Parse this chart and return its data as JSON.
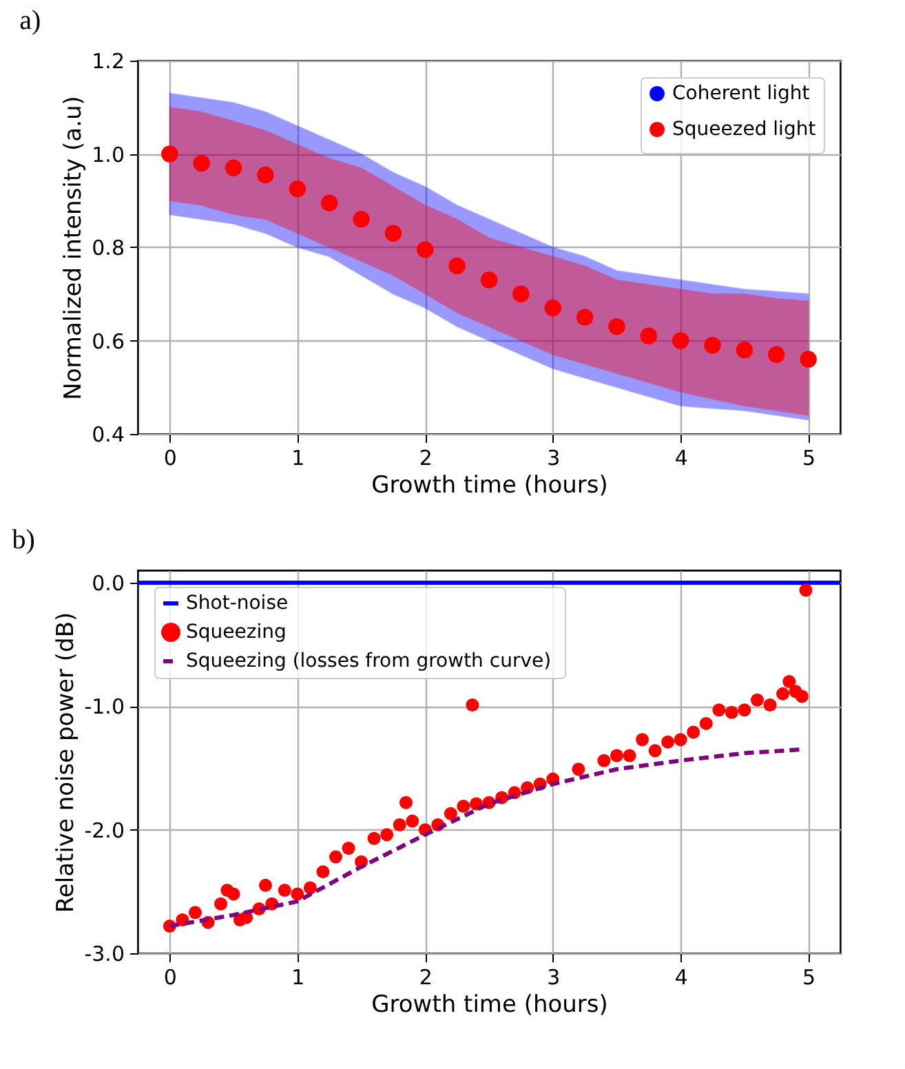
{
  "chart_data": [
    {
      "type": "scatter",
      "annotations": [
        "a)"
      ],
      "xlabel": "Growth time (hours)",
      "ylabel": "Normalized intensity (a.u)",
      "xlim": [
        -0.25,
        5.25
      ],
      "ylim": [
        0.4,
        1.2
      ],
      "xticks": [
        0,
        1,
        2,
        3,
        4,
        5
      ],
      "yticks": [
        {
          "value": 0.4,
          "label": "0.4"
        },
        {
          "value": 0.6,
          "label": "0.6"
        },
        {
          "value": 0.8,
          "label": "0.8"
        },
        {
          "value": 1.0,
          "label": "1.0"
        },
        {
          "value": 1.2,
          "label": "1.2"
        }
      ],
      "grid": true,
      "legend": "top right",
      "x": [
        0,
        0.25,
        0.5,
        0.75,
        1,
        1.25,
        1.5,
        1.75,
        2,
        2.25,
        2.5,
        2.75,
        3,
        3.25,
        3.5,
        3.75,
        4,
        4.25,
        4.5,
        4.75,
        5
      ],
      "series": [
        {
          "name": "Coherent light",
          "color": "#0000ff",
          "values": [
            null,
            null,
            null,
            null,
            null,
            null,
            null,
            null,
            null,
            null,
            null,
            null,
            null,
            null,
            null,
            null,
            null,
            null,
            null,
            null,
            null
          ],
          "lower": [
            0.87,
            0.86,
            0.85,
            0.83,
            0.8,
            0.78,
            0.74,
            0.7,
            0.67,
            0.63,
            0.6,
            0.57,
            0.54,
            0.52,
            0.5,
            0.48,
            0.46,
            0.455,
            0.45,
            0.44,
            0.43
          ],
          "upper": [
            1.13,
            1.12,
            1.11,
            1.09,
            1.06,
            1.03,
            1.0,
            0.96,
            0.93,
            0.89,
            0.86,
            0.83,
            0.8,
            0.78,
            0.75,
            0.74,
            0.73,
            0.72,
            0.71,
            0.705,
            0.7
          ]
        },
        {
          "name": "Squeezed light",
          "color": "#ff0000",
          "values": [
            1.0,
            0.98,
            0.97,
            0.955,
            0.925,
            0.895,
            0.86,
            0.83,
            0.795,
            0.76,
            0.73,
            0.7,
            0.67,
            0.65,
            0.63,
            0.61,
            0.6,
            0.59,
            0.58,
            0.57,
            0.56
          ],
          "lower": [
            0.9,
            0.89,
            0.87,
            0.86,
            0.83,
            0.8,
            0.77,
            0.74,
            0.7,
            0.66,
            0.63,
            0.6,
            0.57,
            0.55,
            0.53,
            0.51,
            0.49,
            0.475,
            0.46,
            0.45,
            0.44
          ],
          "upper": [
            1.1,
            1.09,
            1.07,
            1.05,
            1.02,
            0.99,
            0.97,
            0.93,
            0.89,
            0.86,
            0.82,
            0.8,
            0.78,
            0.76,
            0.73,
            0.72,
            0.71,
            0.7,
            0.7,
            0.69,
            0.685
          ]
        }
      ]
    },
    {
      "type": "scatter",
      "annotations": [
        "b)"
      ],
      "xlabel": "Growth time (hours)",
      "ylabel": "Relative noise power (dB)",
      "xlim": [
        -0.25,
        5.25
      ],
      "ylim": [
        -3.0,
        0.1
      ],
      "xticks": [
        0,
        1,
        2,
        3,
        4,
        5
      ],
      "yticks": [
        {
          "value": -3,
          "label": "-3.0"
        },
        {
          "value": -2,
          "label": "-2.0"
        },
        {
          "value": -1,
          "label": "-1.0"
        },
        {
          "value": 0,
          "label": "0.0"
        }
      ],
      "grid": true,
      "legend": "top left",
      "series": [
        {
          "name": "Shot-noise",
          "type": "line",
          "color": "#0000ff",
          "line_style": "solid",
          "x": [
            -0.25,
            5.25
          ],
          "values": [
            0,
            0
          ]
        },
        {
          "name": "Squeezing",
          "type": "scatter",
          "color": "#ff0000",
          "x": [
            0,
            0.1,
            0.2,
            0.3,
            0.4,
            0.45,
            0.5,
            0.55,
            0.6,
            0.7,
            0.75,
            0.8,
            0.9,
            1.0,
            1.1,
            1.2,
            1.3,
            1.4,
            1.5,
            1.6,
            1.7,
            1.8,
            1.85,
            1.9,
            2.0,
            2.1,
            2.2,
            2.3,
            2.37,
            2.4,
            2.5,
            2.6,
            2.7,
            2.8,
            2.9,
            3.0,
            3.2,
            3.4,
            3.5,
            3.6,
            3.7,
            3.8,
            3.9,
            4.0,
            4.1,
            4.2,
            4.3,
            4.4,
            4.5,
            4.6,
            4.7,
            4.8,
            4.85,
            4.9,
            4.95,
            4.98
          ],
          "values": [
            -2.78,
            -2.73,
            -2.67,
            -2.75,
            -2.6,
            -2.49,
            -2.52,
            -2.73,
            -2.71,
            -2.64,
            -2.45,
            -2.6,
            -2.49,
            -2.52,
            -2.47,
            -2.34,
            -2.22,
            -2.15,
            -2.26,
            -2.07,
            -2.04,
            -1.96,
            -1.78,
            -1.93,
            -2.0,
            -1.96,
            -1.87,
            -1.81,
            -0.99,
            -1.79,
            -1.78,
            -1.74,
            -1.7,
            -1.66,
            -1.63,
            -1.59,
            -1.51,
            -1.44,
            -1.4,
            -1.4,
            -1.27,
            -1.36,
            -1.29,
            -1.27,
            -1.21,
            -1.14,
            -1.03,
            -1.05,
            -1.03,
            -0.95,
            -0.99,
            -0.9,
            -0.8,
            -0.88,
            -0.92,
            -0.06
          ]
        },
        {
          "name": "Squeezing  (losses from growth curve)",
          "type": "line",
          "color": "#800080",
          "line_style": "dashed",
          "x": [
            0,
            0.5,
            1.0,
            1.5,
            2.0,
            2.5,
            3.0,
            3.5,
            4.0,
            4.5,
            4.95
          ],
          "values": [
            -2.78,
            -2.69,
            -2.58,
            -2.3,
            -2.04,
            -1.79,
            -1.63,
            -1.51,
            -1.44,
            -1.38,
            -1.35
          ]
        }
      ]
    }
  ]
}
